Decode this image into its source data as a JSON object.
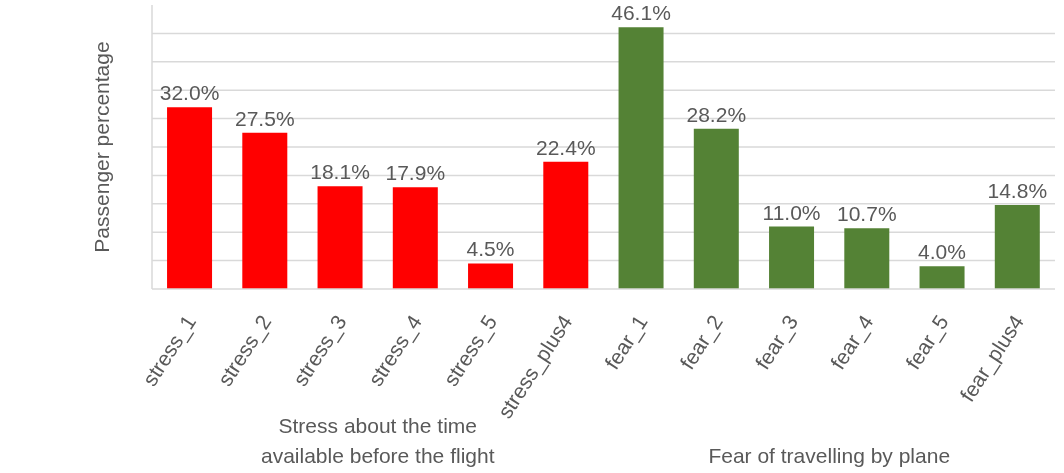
{
  "chart_data": {
    "type": "bar",
    "ylabel": "Passenger percentage",
    "categories": [
      "stress_1",
      "stress_2",
      "stress_3",
      "stress_4",
      "stress_5",
      "stress_plus4",
      "fear_1",
      "fear_2",
      "fear_3",
      "fear_4",
      "fear_5",
      "fear_plus4"
    ],
    "values": [
      32.0,
      27.5,
      18.1,
      17.9,
      4.5,
      22.4,
      46.1,
      28.2,
      11.0,
      10.7,
      4.0,
      14.8
    ],
    "colors": [
      "#ff0000",
      "#ff0000",
      "#ff0000",
      "#ff0000",
      "#ff0000",
      "#ff0000",
      "#548235",
      "#548235",
      "#548235",
      "#548235",
      "#548235",
      "#548235"
    ],
    "value_labels": [
      "32.0%",
      "27.5%",
      "18.1%",
      "17.9%",
      "4.5%",
      "22.4%",
      "46.1%",
      "28.2%",
      "11.0%",
      "10.7%",
      "4.0%",
      "14.8%"
    ],
    "ylim": [
      0,
      50
    ],
    "yticks": [
      {
        "value": 5,
        "label": null
      },
      {
        "value": 10,
        "label": null
      },
      {
        "value": 15,
        "label": null
      },
      {
        "value": 20,
        "label": null
      },
      {
        "value": 25,
        "label": null
      },
      {
        "value": 30,
        "label": null
      },
      {
        "value": 35,
        "label": null
      },
      {
        "value": 40,
        "label": null
      },
      {
        "value": 45,
        "label": null
      }
    ],
    "tick_labels": "x",
    "grid": "y",
    "annotations": [
      "Stress about the time available before the flight",
      "Fear of travelling by plane"
    ]
  }
}
